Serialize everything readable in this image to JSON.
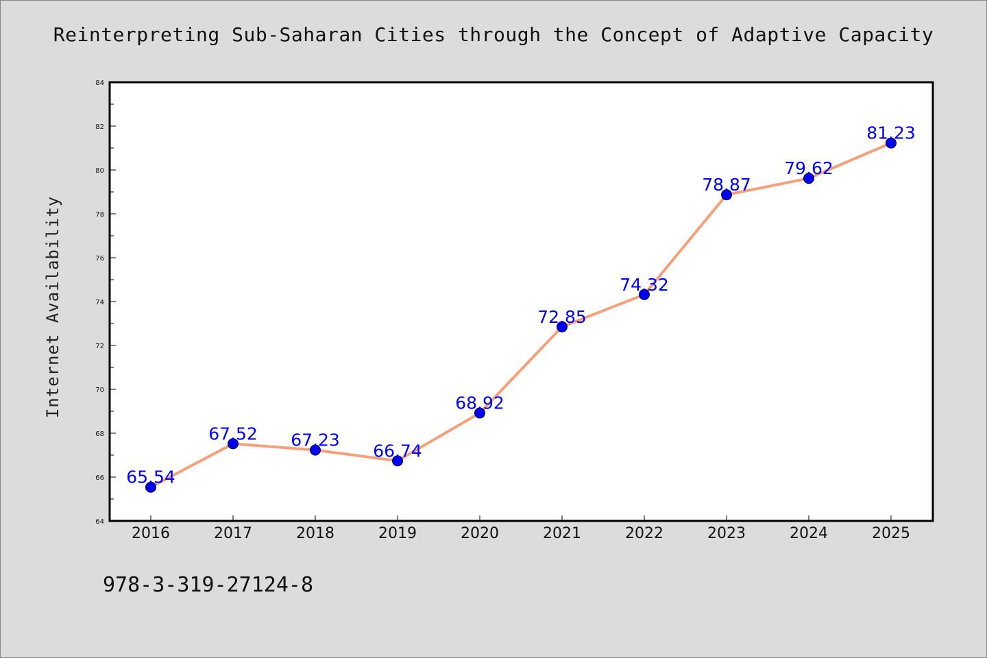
{
  "chart_data": {
    "type": "line",
    "title": "Reinterpreting Sub-Saharan Cities through the Concept of Adaptive Capacity",
    "xlabel": "",
    "ylabel": "Internet Availability",
    "categories": [
      "2016",
      "2017",
      "2018",
      "2019",
      "2020",
      "2021",
      "2022",
      "2023",
      "2024",
      "2025"
    ],
    "series": [
      {
        "values": [
          65.54,
          67.52,
          67.23,
          66.74,
          68.92,
          72.85,
          74.32,
          78.87,
          79.62,
          81.23
        ],
        "data_labels": [
          "65.54",
          "67.52",
          "67.23",
          "66.74",
          "68.92",
          "72.85",
          "74.32",
          "78.87",
          "79.62",
          "81.23"
        ]
      }
    ],
    "ylim": [
      64,
      84
    ],
    "yticks": [
      "64",
      "66",
      "68",
      "70",
      "72",
      "74",
      "76",
      "78",
      "80",
      "82",
      "84"
    ],
    "grid": false,
    "line_color": "#f4a07a",
    "marker_color": "#0000ee",
    "label_color": "#0000ff"
  },
  "footer": {
    "isbn": "978-3-319-27124-8"
  },
  "colors": {
    "background": "#dcdcdc",
    "plot_background": "#ffffff"
  }
}
